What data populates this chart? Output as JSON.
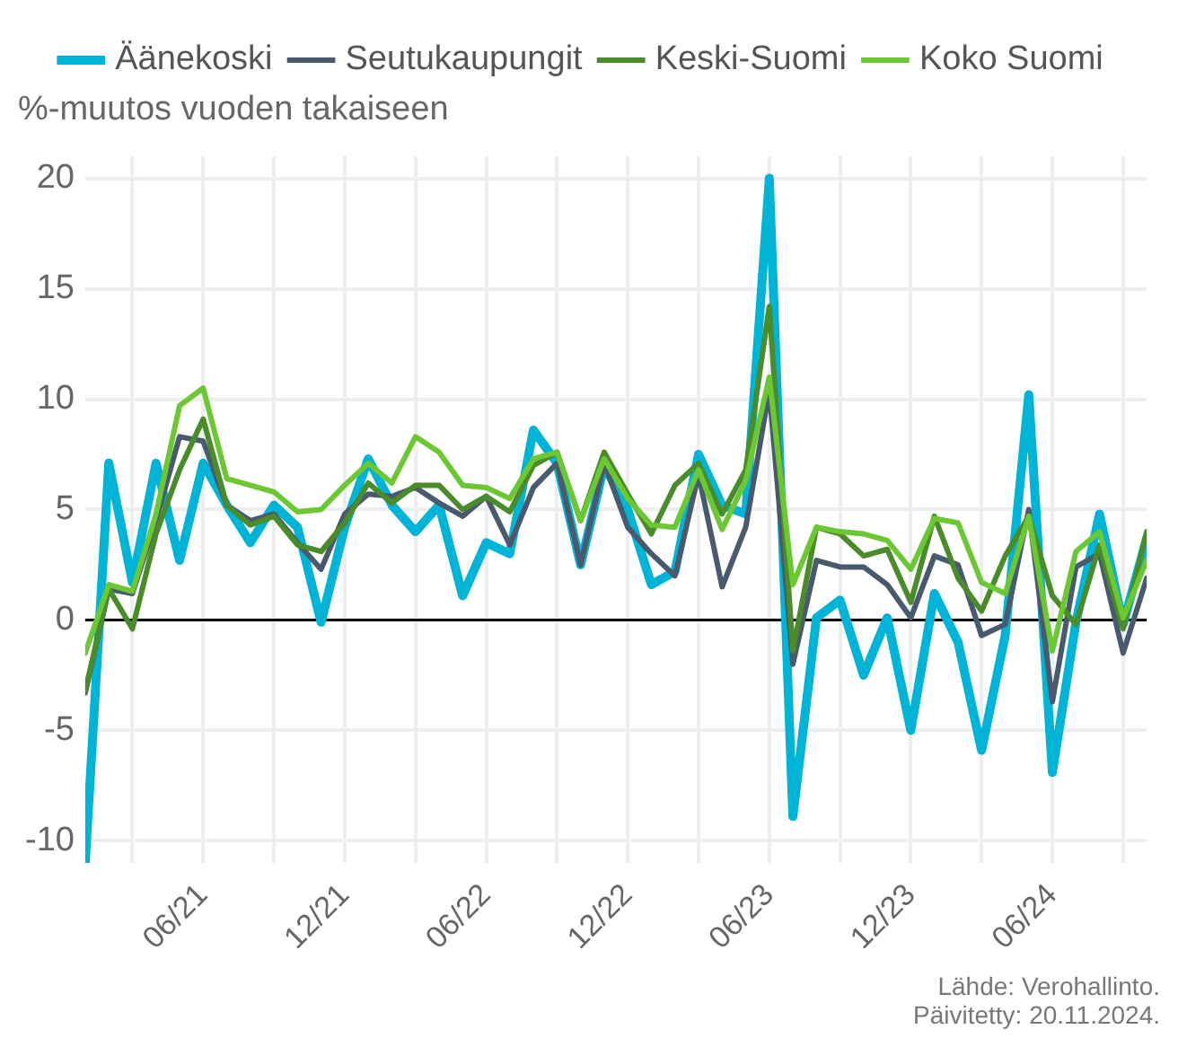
{
  "chart_data": {
    "type": "line",
    "ylabel": "%-muutos vuoden takaiseen",
    "x": [
      "2021-01",
      "2021-02",
      "2021-03",
      "2021-04",
      "2021-05",
      "2021-06",
      "2021-07",
      "2021-08",
      "2021-09",
      "2021-10",
      "2021-11",
      "2021-12",
      "2022-01",
      "2022-02",
      "2022-03",
      "2022-04",
      "2022-05",
      "2022-06",
      "2022-07",
      "2022-08",
      "2022-09",
      "2022-10",
      "2022-11",
      "2022-12",
      "2023-01",
      "2023-02",
      "2023-03",
      "2023-04",
      "2023-05",
      "2023-06",
      "2023-07",
      "2023-08",
      "2023-09",
      "2023-10",
      "2023-11",
      "2023-12",
      "2024-01",
      "2024-02",
      "2024-03",
      "2024-04",
      "2024-05",
      "2024-06",
      "2024-07",
      "2024-08",
      "2024-09",
      "2024-10"
    ],
    "series": [
      {
        "name": "Äänekoski",
        "color": "#00b4d8",
        "values": [
          -11,
          7.1,
          1.7,
          7.1,
          2.7,
          7.1,
          5.2,
          3.5,
          5.2,
          4.2,
          -0.1,
          4.2,
          7.3,
          5.2,
          4.0,
          5.2,
          1.1,
          3.5,
          3.0,
          8.6,
          7.1,
          2.5,
          7.0,
          5.0,
          1.6,
          2.2,
          7.5,
          5.2,
          4.8,
          20,
          -8.9,
          0.1,
          0.9,
          -2.5,
          0.1,
          -5.0,
          1.2,
          -1.0,
          -5.9,
          -0.7,
          10.2,
          -6.9,
          -0.1,
          4.8,
          -0.2,
          3.7
        ]
      },
      {
        "name": "Seutukaupungit",
        "color": "#4a5a6e",
        "values": [
          -3.3,
          1.4,
          1.2,
          4.5,
          8.3,
          8.1,
          5.2,
          4.5,
          4.8,
          3.5,
          2.3,
          4.8,
          5.7,
          5.6,
          6.0,
          5.3,
          4.7,
          5.6,
          3.4,
          6.0,
          7.1,
          2.5,
          7.1,
          4.2,
          3.0,
          2.0,
          6.6,
          1.5,
          4.2,
          10.4,
          -2.0,
          2.7,
          2.4,
          2.4,
          1.6,
          0.1,
          2.9,
          2.5,
          -0.7,
          -0.2,
          5.0,
          -3.7,
          2.4,
          3.0,
          -1.5,
          1.9
        ]
      },
      {
        "name": "Keski-Suomi",
        "color": "#4a8c2a",
        "values": [
          -3.2,
          1.4,
          -0.4,
          3.9,
          6.8,
          9.1,
          5.2,
          4.3,
          4.7,
          3.4,
          3.1,
          4.4,
          6.2,
          5.3,
          6.1,
          6.1,
          5.0,
          5.6,
          4.9,
          7.0,
          7.6,
          4.5,
          7.6,
          5.7,
          3.9,
          6.1,
          7.1,
          4.8,
          6.8,
          14.2,
          -1.4,
          4.2,
          3.9,
          2.9,
          3.2,
          0.8,
          4.7,
          1.9,
          0.4,
          2.9,
          4.7,
          1.1,
          -0.2,
          3.4,
          -0.4,
          4.0
        ]
      },
      {
        "name": "Koko Suomi",
        "color": "#6cc832",
        "values": [
          -1.5,
          1.6,
          1.3,
          4.8,
          9.7,
          10.5,
          6.4,
          6.1,
          5.8,
          4.9,
          5.0,
          6.1,
          7.1,
          6.2,
          8.3,
          7.6,
          6.1,
          6.0,
          5.5,
          7.3,
          7.6,
          4.5,
          7.3,
          5.5,
          4.3,
          4.2,
          6.8,
          4.1,
          6.3,
          11.0,
          1.6,
          4.2,
          4.0,
          3.9,
          3.6,
          2.3,
          4.6,
          4.4,
          1.7,
          1.2,
          4.7,
          -1.4,
          3.1,
          4.0,
          0.1,
          2.7
        ]
      }
    ],
    "xlim": [
      "2021-01",
      "2024-10"
    ],
    "xticks": [
      {
        "value": "2021-03",
        "label": null
      },
      {
        "value": "2021-06",
        "label": "06/21"
      },
      {
        "value": "2021-09",
        "label": null
      },
      {
        "value": "2021-12",
        "label": "12/21"
      },
      {
        "value": "2022-03",
        "label": null
      },
      {
        "value": "2022-06",
        "label": "06/22"
      },
      {
        "value": "2022-09",
        "label": null
      },
      {
        "value": "2022-12",
        "label": "12/22"
      },
      {
        "value": "2023-03",
        "label": null
      },
      {
        "value": "2023-06",
        "label": "06/23"
      },
      {
        "value": "2023-09",
        "label": null
      },
      {
        "value": "2023-12",
        "label": "12/23"
      },
      {
        "value": "2024-03",
        "label": null
      },
      {
        "value": "2024-06",
        "label": "06/24"
      },
      {
        "value": "2024-09",
        "label": null
      }
    ],
    "ylim": [
      -11,
      21
    ],
    "yticks": [
      -10,
      -5,
      0,
      5,
      10,
      15,
      20
    ],
    "ref_lines": [
      {
        "axis": "y",
        "value": 0,
        "color": "#000000"
      }
    ],
    "grid": true,
    "legend": "top",
    "marker": "none",
    "line_style": "solid",
    "annotations": [
      "Lähde: Verohallinto.",
      "Päivitetty: 20.11.2024."
    ]
  }
}
